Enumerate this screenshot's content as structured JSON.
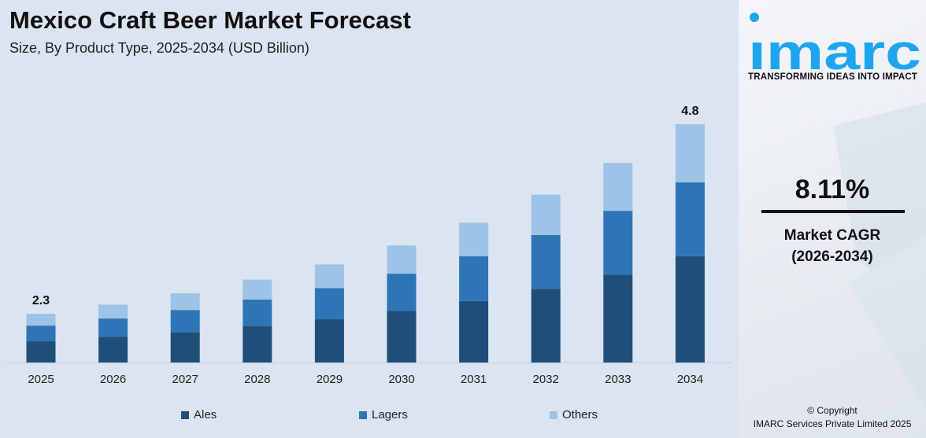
{
  "title": "Mexico Craft Beer Market Forecast",
  "subtitle": "Size, By Product Type, 2025-2034 (USD Billion)",
  "chart_data": {
    "type": "bar",
    "stacked": true,
    "categories": [
      "2025",
      "2026",
      "2027",
      "2028",
      "2029",
      "2030",
      "2031",
      "2032",
      "2033",
      "2034"
    ],
    "series": [
      {
        "name": "Ales",
        "color": "#1f4e79",
        "values": [
          1.0,
          1.07,
          1.13,
          1.21,
          1.3,
          1.41,
          1.54,
          1.7,
          1.89,
          2.14
        ]
      },
      {
        "name": "Lagers",
        "color": "#2e75b6",
        "values": [
          0.74,
          0.77,
          0.82,
          0.88,
          0.94,
          1.02,
          1.12,
          1.24,
          1.37,
          1.49
        ]
      },
      {
        "name": "Others",
        "color": "#9dc3e6",
        "values": [
          0.56,
          0.58,
          0.62,
          0.66,
          0.71,
          0.77,
          0.84,
          0.93,
          1.03,
          1.17
        ]
      }
    ],
    "data_labels": {
      "2025": "2.3",
      "2034": "4.8"
    },
    "legend_position": "bottom",
    "grid": false
  },
  "side": {
    "logo_text": "imarc",
    "tagline": "TRANSFORMING IDEAS INTO IMPACT",
    "cagr_value": "8.11%",
    "cagr_label": "Market CAGR",
    "cagr_period": "(2026-2034)",
    "copyright": "© Copyright",
    "company": "IMARC Services Private Limited 2025",
    "brand_color": "#1ea5f0"
  }
}
